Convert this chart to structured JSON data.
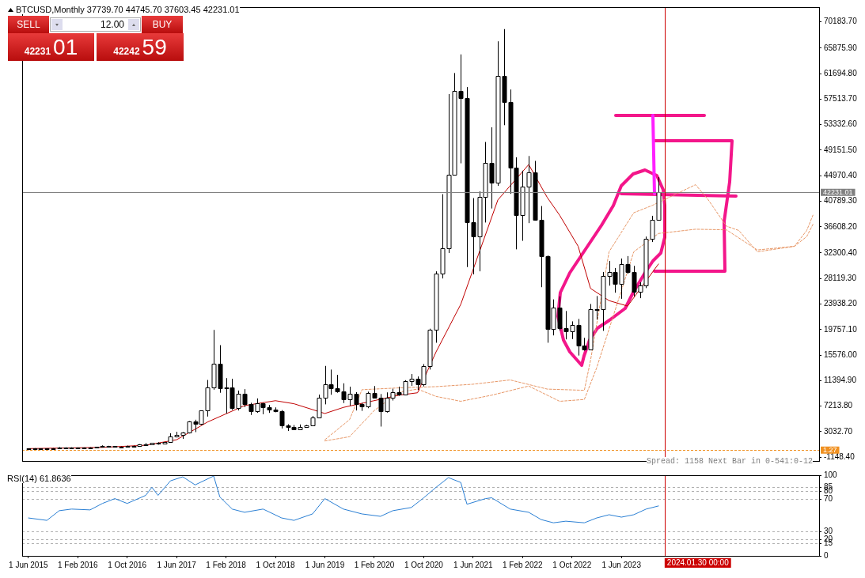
{
  "chart_data": [
    {
      "type": "candlestick",
      "title": "BTCUSD,Monthly 37739.70 44745.70 37603.45 42231.01",
      "color": "#000000",
      "x": [
        "2015-06",
        "2015-07",
        "2015-08",
        "2015-09",
        "2015-10",
        "2015-11",
        "2015-12",
        "2016-01",
        "2016-02",
        "2016-03",
        "2016-04",
        "2016-05",
        "2016-06",
        "2016-07",
        "2016-08",
        "2016-09",
        "2016-10",
        "2016-11",
        "2016-12",
        "2017-01",
        "2017-02",
        "2017-03",
        "2017-04",
        "2017-05",
        "2017-06",
        "2017-07",
        "2017-08",
        "2017-09",
        "2017-10",
        "2017-11",
        "2017-12",
        "2018-01",
        "2018-02",
        "2018-03",
        "2018-04",
        "2018-05",
        "2018-06",
        "2018-07",
        "2018-08",
        "2018-09",
        "2018-10",
        "2018-11",
        "2018-12",
        "2019-01",
        "2019-02",
        "2019-03",
        "2019-04",
        "2019-05",
        "2019-06",
        "2019-07",
        "2019-08",
        "2019-09",
        "2019-10",
        "2019-11",
        "2019-12",
        "2020-01",
        "2020-02",
        "2020-03",
        "2020-04",
        "2020-05",
        "2020-06",
        "2020-07",
        "2020-08",
        "2020-09",
        "2020-10",
        "2020-11",
        "2020-12",
        "2021-01",
        "2021-02",
        "2021-03",
        "2021-04",
        "2021-05",
        "2021-06",
        "2021-07",
        "2021-08",
        "2021-09",
        "2021-10",
        "2021-11",
        "2021-12",
        "2022-01",
        "2022-02",
        "2022-03",
        "2022-04",
        "2022-05",
        "2022-06",
        "2022-07",
        "2022-08",
        "2022-09",
        "2022-10",
        "2022-11",
        "2022-12",
        "2023-01",
        "2023-02",
        "2023-03",
        "2023-04",
        "2023-05",
        "2023-06",
        "2023-07",
        "2023-08",
        "2023-09",
        "2023-10",
        "2023-11",
        "2023-12"
      ],
      "colors": [
        "#ffffff",
        "#ffffff",
        "#000000",
        "#ffffff",
        "#ffffff",
        "#ffffff",
        "#ffffff",
        "#000000",
        "#ffffff",
        "#000000",
        "#ffffff",
        "#ffffff",
        "#ffffff",
        "#000000",
        "#000000",
        "#ffffff",
        "#ffffff",
        "#ffffff",
        "#ffffff",
        "#ffffff",
        "#ffffff",
        "#000000",
        "#ffffff",
        "#ffffff",
        "#ffffff",
        "#ffffff",
        "#ffffff",
        "#000000",
        "#ffffff",
        "#ffffff",
        "#ffffff",
        "#000000",
        "#ffffff",
        "#000000",
        "#ffffff",
        "#000000",
        "#000000",
        "#ffffff",
        "#000000",
        "#000000",
        "#000000",
        "#000000",
        "#000000",
        "#000000",
        "#ffffff",
        "#ffffff",
        "#ffffff",
        "#ffffff",
        "#ffffff",
        "#000000",
        "#000000",
        "#000000",
        "#ffffff",
        "#000000",
        "#000000",
        "#ffffff",
        "#000000",
        "#000000",
        "#ffffff",
        "#ffffff",
        "#000000",
        "#ffffff",
        "#ffffff",
        "#000000",
        "#ffffff",
        "#ffffff",
        "#ffffff",
        "#ffffff",
        "#ffffff",
        "#ffffff",
        "#000000",
        "#000000",
        "#000000",
        "#ffffff",
        "#ffffff",
        "#000000",
        "#ffffff",
        "#000000",
        "#000000",
        "#000000",
        "#ffffff",
        "#ffffff",
        "#000000",
        "#000000",
        "#000000",
        "#ffffff",
        "#000000",
        "#000000",
        "#ffffff",
        "#000000",
        "#000000",
        "#ffffff",
        "#ffffff",
        "#ffffff",
        "#ffffff",
        "#000000",
        "#ffffff",
        "#000000",
        "#000000",
        "#ffffff",
        "#ffffff",
        "#ffffff",
        "#ffffff"
      ],
      "ohlc": [
        [
          223,
          268,
          218,
          263
        ],
        [
          263,
          318,
          253,
          284
        ],
        [
          284,
          285,
          198,
          230
        ],
        [
          230,
          245,
          225,
          236
        ],
        [
          236,
          333,
          236,
          313
        ],
        [
          313,
          500,
          306,
          378
        ],
        [
          378,
          465,
          350,
          430
        ],
        [
          430,
          460,
          355,
          368
        ],
        [
          368,
          447,
          365,
          437
        ],
        [
          437,
          438,
          391,
          416
        ],
        [
          416,
          467,
          414,
          448
        ],
        [
          448,
          550,
          441,
          531
        ],
        [
          531,
          780,
          531,
          673
        ],
        [
          673,
          706,
          478,
          624
        ],
        [
          624,
          626,
          540,
          573
        ],
        [
          573,
          630,
          570,
          609
        ],
        [
          609,
          740,
          603,
          698
        ],
        [
          698,
          755,
          686,
          743
        ],
        [
          743,
          980,
          740,
          963
        ],
        [
          963,
          1150,
          755,
          970
        ],
        [
          970,
          1200,
          930,
          1190
        ],
        [
          1190,
          1290,
          890,
          1080
        ],
        [
          1080,
          1350,
          1060,
          1350
        ],
        [
          1350,
          2760,
          1350,
          2300
        ],
        [
          2300,
          3000,
          2080,
          2480
        ],
        [
          2480,
          2950,
          1840,
          2880
        ],
        [
          2880,
          4750,
          2730,
          4700
        ],
        [
          4700,
          4980,
          2950,
          4340
        ],
        [
          4340,
          6470,
          4110,
          6470
        ],
        [
          6470,
          11500,
          5500,
          10230
        ],
        [
          10230,
          19700,
          9900,
          14150
        ],
        [
          14150,
          17200,
          9400,
          10200
        ],
        [
          10200,
          11800,
          6000,
          10300
        ],
        [
          10300,
          11700,
          6600,
          6920
        ],
        [
          6920,
          9760,
          6500,
          9240
        ],
        [
          9240,
          9990,
          7050,
          7500
        ],
        [
          7500,
          7760,
          5760,
          6390
        ],
        [
          6390,
          8470,
          6110,
          7730
        ],
        [
          7730,
          7760,
          5880,
          7030
        ],
        [
          7030,
          7400,
          6100,
          6630
        ],
        [
          6630,
          7000,
          6200,
          6370
        ],
        [
          6370,
          6560,
          3550,
          4040
        ],
        [
          4040,
          4240,
          3150,
          3740
        ],
        [
          3740,
          4110,
          3380,
          3460
        ],
        [
          3460,
          4200,
          3400,
          3850
        ],
        [
          3850,
          4130,
          3700,
          4100
        ],
        [
          4100,
          5600,
          4080,
          5350
        ],
        [
          5350,
          9100,
          5330,
          8570
        ],
        [
          8570,
          13800,
          7500,
          10820
        ],
        [
          10820,
          13200,
          9070,
          10080
        ],
        [
          10080,
          12330,
          9400,
          9630
        ],
        [
          9630,
          10950,
          7710,
          8300
        ],
        [
          8300,
          10400,
          7300,
          9200
        ],
        [
          9200,
          9500,
          6500,
          7570
        ],
        [
          7570,
          7750,
          6430,
          7200
        ],
        [
          7200,
          9580,
          6870,
          9350
        ],
        [
          9350,
          10500,
          8470,
          8600
        ],
        [
          8600,
          9190,
          3860,
          6440
        ],
        [
          6440,
          9460,
          6150,
          8650
        ],
        [
          8650,
          10070,
          8130,
          9450
        ],
        [
          9450,
          10400,
          8900,
          9140
        ],
        [
          9140,
          11460,
          8970,
          11350
        ],
        [
          11350,
          12480,
          10540,
          11650
        ],
        [
          11650,
          12070,
          9880,
          10780
        ],
        [
          10780,
          14100,
          10440,
          13800
        ],
        [
          13800,
          19900,
          13200,
          19700
        ],
        [
          19700,
          29300,
          17600,
          28990
        ],
        [
          28990,
          41950,
          28130,
          33110
        ],
        [
          33110,
          58350,
          32300,
          45140
        ],
        [
          45140,
          61800,
          45000,
          58800
        ],
        [
          58800,
          64850,
          47000,
          57700
        ],
        [
          57700,
          59500,
          30000,
          37300
        ],
        [
          37300,
          41300,
          28800,
          35040
        ],
        [
          35040,
          42400,
          29300,
          41460
        ],
        [
          41460,
          50500,
          37300,
          47100
        ],
        [
          47100,
          52900,
          39600,
          43800
        ],
        [
          43800,
          67000,
          43300,
          61300
        ],
        [
          61300,
          69000,
          53250,
          57000
        ],
        [
          57000,
          59100,
          42000,
          46300
        ],
        [
          46300,
          47990,
          32900,
          38500
        ],
        [
          38500,
          45800,
          34300,
          43190
        ],
        [
          43190,
          48200,
          37200,
          45500
        ],
        [
          45500,
          47400,
          37600,
          37700
        ],
        [
          37700,
          40000,
          26700,
          31800
        ],
        [
          31800,
          31900,
          17600,
          19900
        ],
        [
          19900,
          24700,
          18800,
          23300
        ],
        [
          23300,
          25200,
          19600,
          20050
        ],
        [
          20050,
          22800,
          18150,
          19430
        ],
        [
          19430,
          21100,
          18200,
          20490
        ],
        [
          20490,
          21500,
          15500,
          17170
        ],
        [
          17170,
          18400,
          16300,
          16540
        ],
        [
          16540,
          23950,
          16500,
          23140
        ],
        [
          23140,
          25250,
          21400,
          23150
        ],
        [
          23150,
          29200,
          19550,
          28480
        ],
        [
          28480,
          31000,
          26950,
          29250
        ],
        [
          29250,
          29850,
          25800,
          27220
        ],
        [
          27220,
          31400,
          24800,
          30480
        ],
        [
          30480,
          31800,
          28900,
          29230
        ],
        [
          29230,
          30200,
          25200,
          25930
        ],
        [
          25930,
          27500,
          24900,
          26970
        ],
        [
          26970,
          35000,
          26550,
          34650
        ],
        [
          34650,
          38400,
          34100,
          37720
        ],
        [
          37739.7,
          44745.7,
          37603.45,
          42231.01
        ]
      ],
      "series": [
        {
          "type": "line",
          "color": "#c00000",
          "x": [
            "2015-06",
            "2016-06",
            "2017-01",
            "2017-06",
            "2017-11",
            "2018-05",
            "2018-10",
            "2019-01",
            "2019-06",
            "2019-09",
            "2020-06",
            "2020-09",
            "2020-12",
            "2021-04",
            "2021-10",
            "2022-03",
            "2022-06",
            "2022-08",
            "2022-11",
            "2023-01",
            "2023-04",
            "2023-07",
            "2023-12"
          ],
          "values": [
            250,
            450,
            800,
            1700,
            4600,
            7300,
            8100,
            7600,
            6000,
            7000,
            9000,
            9400,
            16100,
            23900,
            41000,
            46800,
            41400,
            38500,
            33400,
            26500,
            24500,
            23600,
            30500
          ]
        },
        {
          "type": "line",
          "color": "#e89868",
          "line_style": "dashed",
          "x": [
            "2019-06",
            "2019-10",
            "2019-12",
            "2020-06",
            "2020-12",
            "2021-06",
            "2021-12",
            "2022-06",
            "2022-12",
            "2023-01",
            "2023-04",
            "2023-08",
            "2023-11",
            "2024-06",
            "2024-08",
            "2024-11",
            "2025-01",
            "2025-04",
            "2025-10",
            "2025-12",
            "2026-01"
          ],
          "values": [
            1700,
            5000,
            9900,
            10200,
            10400,
            10800,
            11500,
            10000,
            9800,
            14700,
            32500,
            38900,
            40100,
            43500,
            41100,
            36700,
            36000,
            32500,
            33400,
            36000,
            38500
          ]
        },
        {
          "type": "line",
          "color": "#e89868",
          "line_style": "dashed",
          "x": [
            "2019-06",
            "2019-10",
            "2020-02",
            "2020-06",
            "2020-09",
            "2020-12",
            "2021-04",
            "2021-09",
            "2022-03",
            "2022-08",
            "2022-12",
            "2023-02",
            "2023-05",
            "2023-08",
            "2023-12",
            "2024-06",
            "2024-11",
            "2025-04",
            "2025-10",
            "2025-12",
            "2026-01"
          ],
          "values": [
            1500,
            2200,
            6500,
            9500,
            10000,
            8800,
            8000,
            9000,
            10500,
            8000,
            8300,
            13500,
            null,
            32500,
            35500,
            36200,
            36100,
            32800,
            33400,
            35000,
            37000
          ]
        }
      ],
      "xlim": [
        "2015-05",
        "2026-02"
      ],
      "ylim": [
        -1780,
        72600
      ],
      "yticks": [
        {
          "value": 70183.7,
          "label": "70183.70"
        },
        {
          "value": 65875.9,
          "label": "65875.90"
        },
        {
          "value": 61694.8,
          "label": "61694.80"
        },
        {
          "value": 57513.7,
          "label": "57513.70"
        },
        {
          "value": 53332.6,
          "label": "53332.60"
        },
        {
          "value": 49151.5,
          "label": "49151.50"
        },
        {
          "value": 44970.4,
          "label": "44970.40"
        },
        {
          "value": 40789.3,
          "label": "40789.30"
        },
        {
          "value": 36608.2,
          "label": "36608.20"
        },
        {
          "value": 32300.4,
          "label": "32300.40"
        },
        {
          "value": 28119.3,
          "label": "28119.30"
        },
        {
          "value": 23938.2,
          "label": "23938.20"
        },
        {
          "value": 19757.1,
          "label": "19757.10"
        },
        {
          "value": 15576,
          "label": "15576.00"
        },
        {
          "value": 11394.9,
          "label": "11394.90"
        },
        {
          "value": 7213.8,
          "label": "7213.80"
        },
        {
          "value": 3032.7,
          "label": "3032.70"
        },
        {
          "value": -1148.4,
          "label": "-1148.40"
        }
      ],
      "tick_labels": "y",
      "ref_lines": [
        {
          "axis": "y",
          "value": 42231.01,
          "label": "42231.01",
          "color": "#808080"
        },
        {
          "axis": "y",
          "value": 1.27,
          "label": "1.27",
          "color": "#f09020",
          "line_style": "dashed"
        },
        {
          "axis": "x",
          "value": "2024-01",
          "color": "#cc0000"
        }
      ],
      "annotations": [
        "SELL",
        "12.00",
        "BUY",
        "42231",
        "01",
        "42242",
        "59",
        "Spread: 1158 Next Bar in 0-541:0-12"
      ]
    },
    {
      "type": "line",
      "title": "RSI(14) 61.8636",
      "series": [
        {
          "color": "#2a7fd4",
          "x": [
            "2015-06",
            "2015-09",
            "2015-11",
            "2016-01",
            "2016-04",
            "2016-06",
            "2016-08",
            "2016-10",
            "2017-01",
            "2017-02",
            "2017-03",
            "2017-05",
            "2017-07",
            "2017-09",
            "2017-12",
            "2018-01",
            "2018-03",
            "2018-05",
            "2018-08",
            "2018-11",
            "2019-01",
            "2019-04",
            "2019-06",
            "2019-09",
            "2019-12",
            "2020-03",
            "2020-05",
            "2020-08",
            "2020-10",
            "2020-12",
            "2021-02",
            "2021-04",
            "2021-05",
            "2021-08",
            "2021-09",
            "2021-12",
            "2022-03",
            "2022-05",
            "2022-07",
            "2022-09",
            "2022-12",
            "2023-02",
            "2023-04",
            "2023-06",
            "2023-08",
            "2023-10",
            "2023-12"
          ],
          "values": [
            47,
            44,
            56,
            58,
            57,
            65,
            71,
            65,
            75,
            85,
            75,
            93,
            98,
            88,
            99,
            73,
            58,
            54,
            58,
            47,
            44,
            52,
            71,
            58,
            52,
            49,
            56,
            60,
            72,
            85,
            97,
            91,
            64,
            71,
            72,
            58,
            54,
            45,
            41,
            43,
            41,
            47,
            51,
            48,
            51,
            58,
            61.8636
          ]
        }
      ],
      "xlim": [
        "2015-05",
        "2026-02"
      ],
      "xticks": [
        {
          "value": "2015-06",
          "label": "1 Jun 2015"
        },
        {
          "value": "2016-02",
          "label": "1 Feb 2016"
        },
        {
          "value": "2016-10",
          "label": "1 Oct 2016"
        },
        {
          "value": "2017-06",
          "label": "1 Jun 2017"
        },
        {
          "value": "2018-02",
          "label": "1 Feb 2018"
        },
        {
          "value": "2018-10",
          "label": "1 Oct 2018"
        },
        {
          "value": "2019-06",
          "label": "1 Jun 2019"
        },
        {
          "value": "2020-02",
          "label": "1 Feb 2020"
        },
        {
          "value": "2020-10",
          "label": "1 Oct 2020"
        },
        {
          "value": "2021-06",
          "label": "1 Jun 2021"
        },
        {
          "value": "2022-02",
          "label": "1 Feb 2022"
        },
        {
          "value": "2022-10",
          "label": "1 Oct 2022"
        },
        {
          "value": "2023-06",
          "label": "1 Jun 2023"
        }
      ],
      "ylim": [
        0,
        100
      ],
      "yticks": [
        0,
        15,
        20,
        30,
        70,
        80,
        85,
        100
      ],
      "grid": "y",
      "ref_lines": [
        {
          "axis": "x",
          "value": "2024-01",
          "label": "2024.01.30 00:00",
          "color": "#cc0000"
        }
      ]
    }
  ]
}
